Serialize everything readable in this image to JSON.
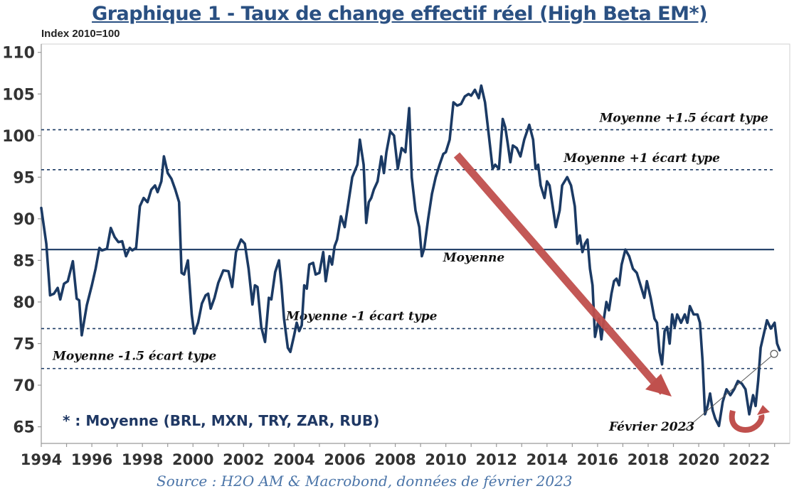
{
  "chart_data": {
    "type": "line",
    "title": "Graphique 1 - Taux de change effectif réel (High Beta EM*)",
    "ylabel": "Index 2010=100",
    "ylim": [
      63,
      111
    ],
    "xlim": [
      1994,
      2023.6
    ],
    "yticks": [
      110,
      105,
      100,
      95,
      90,
      85,
      80,
      75,
      70,
      65
    ],
    "xticks": [
      1994,
      1996,
      1998,
      2000,
      2002,
      2004,
      2006,
      2008,
      2010,
      2012,
      2014,
      2016,
      2018,
      2020,
      2022
    ],
    "grid": false,
    "series": [
      {
        "color": "#1b3a64",
        "points": [
          [
            1994.0,
            91.3
          ],
          [
            1994.2,
            87.0
          ],
          [
            1994.35,
            80.8
          ],
          [
            1994.5,
            81.0
          ],
          [
            1994.65,
            81.7
          ],
          [
            1994.75,
            80.3
          ],
          [
            1994.9,
            82.2
          ],
          [
            1995.05,
            82.5
          ],
          [
            1995.25,
            84.9
          ],
          [
            1995.4,
            80.4
          ],
          [
            1995.5,
            80.2
          ],
          [
            1995.6,
            76.0
          ],
          [
            1995.8,
            79.6
          ],
          [
            1996.0,
            82.0
          ],
          [
            1996.15,
            84.0
          ],
          [
            1996.3,
            86.5
          ],
          [
            1996.4,
            86.2
          ],
          [
            1996.6,
            86.4
          ],
          [
            1996.75,
            88.9
          ],
          [
            1996.9,
            87.8
          ],
          [
            1997.05,
            87.2
          ],
          [
            1997.2,
            87.3
          ],
          [
            1997.35,
            85.5
          ],
          [
            1997.5,
            86.5
          ],
          [
            1997.6,
            86.2
          ],
          [
            1997.75,
            86.5
          ],
          [
            1997.9,
            91.5
          ],
          [
            1998.05,
            92.5
          ],
          [
            1998.2,
            92.0
          ],
          [
            1998.35,
            93.5
          ],
          [
            1998.5,
            94.0
          ],
          [
            1998.6,
            93.2
          ],
          [
            1998.75,
            94.5
          ],
          [
            1998.85,
            97.5
          ],
          [
            1999.0,
            95.5
          ],
          [
            1999.15,
            94.8
          ],
          [
            1999.3,
            93.5
          ],
          [
            1999.45,
            92.0
          ],
          [
            1999.55,
            83.5
          ],
          [
            1999.65,
            83.3
          ],
          [
            1999.8,
            85.0
          ],
          [
            1999.95,
            78.5
          ],
          [
            2000.05,
            76.2
          ],
          [
            2000.2,
            77.5
          ],
          [
            2000.35,
            79.8
          ],
          [
            2000.5,
            80.8
          ],
          [
            2000.6,
            81.0
          ],
          [
            2000.7,
            79.2
          ],
          [
            2000.85,
            80.5
          ],
          [
            2001.0,
            82.3
          ],
          [
            2001.2,
            83.8
          ],
          [
            2001.4,
            83.7
          ],
          [
            2001.55,
            81.8
          ],
          [
            2001.7,
            86.0
          ],
          [
            2001.9,
            87.5
          ],
          [
            2002.05,
            87.0
          ],
          [
            2002.2,
            84.0
          ],
          [
            2002.35,
            79.7
          ],
          [
            2002.45,
            82.0
          ],
          [
            2002.55,
            81.8
          ],
          [
            2002.7,
            77.0
          ],
          [
            2002.85,
            75.2
          ],
          [
            2003.0,
            80.5
          ],
          [
            2003.1,
            80.3
          ],
          [
            2003.25,
            83.6
          ],
          [
            2003.4,
            85.0
          ],
          [
            2003.5,
            82.0
          ],
          [
            2003.6,
            78.0
          ],
          [
            2003.75,
            74.5
          ],
          [
            2003.85,
            74.0
          ],
          [
            2004.0,
            76.0
          ],
          [
            2004.1,
            77.5
          ],
          [
            2004.2,
            76.5
          ],
          [
            2004.3,
            77.2
          ],
          [
            2004.4,
            82.0
          ],
          [
            2004.5,
            81.6
          ],
          [
            2004.6,
            84.5
          ],
          [
            2004.75,
            84.7
          ],
          [
            2004.85,
            83.3
          ],
          [
            2005.0,
            83.5
          ],
          [
            2005.15,
            86.0
          ],
          [
            2005.25,
            82.5
          ],
          [
            2005.4,
            85.5
          ],
          [
            2005.5,
            84.5
          ],
          [
            2005.6,
            86.7
          ],
          [
            2005.7,
            87.5
          ],
          [
            2005.85,
            90.3
          ],
          [
            2006.0,
            89.0
          ],
          [
            2006.15,
            92.0
          ],
          [
            2006.3,
            95.0
          ],
          [
            2006.5,
            96.5
          ],
          [
            2006.6,
            99.5
          ],
          [
            2006.75,
            96.5
          ],
          [
            2006.85,
            89.5
          ],
          [
            2006.95,
            92.0
          ],
          [
            2007.05,
            92.5
          ],
          [
            2007.15,
            93.5
          ],
          [
            2007.3,
            94.5
          ],
          [
            2007.45,
            97.5
          ],
          [
            2007.55,
            95.5
          ],
          [
            2007.65,
            98.0
          ],
          [
            2007.8,
            100.5
          ],
          [
            2007.95,
            100.0
          ],
          [
            2008.1,
            96.0
          ],
          [
            2008.25,
            98.5
          ],
          [
            2008.4,
            98.0
          ],
          [
            2008.55,
            103.3
          ],
          [
            2008.65,
            95.0
          ],
          [
            2008.8,
            91.0
          ],
          [
            2008.95,
            89.0
          ],
          [
            2009.05,
            85.5
          ],
          [
            2009.15,
            86.5
          ],
          [
            2009.3,
            90.0
          ],
          [
            2009.45,
            93.0
          ],
          [
            2009.6,
            95.0
          ],
          [
            2009.75,
            96.5
          ],
          [
            2009.9,
            97.8
          ],
          [
            2010.0,
            98.0
          ],
          [
            2010.15,
            99.5
          ],
          [
            2010.3,
            104.0
          ],
          [
            2010.45,
            103.6
          ],
          [
            2010.6,
            103.8
          ],
          [
            2010.75,
            104.7
          ],
          [
            2010.9,
            105.0
          ],
          [
            2011.0,
            104.8
          ],
          [
            2011.15,
            105.5
          ],
          [
            2011.3,
            104.5
          ],
          [
            2011.4,
            106.0
          ],
          [
            2011.55,
            104.0
          ],
          [
            2011.7,
            100.0
          ],
          [
            2011.85,
            96.0
          ],
          [
            2011.95,
            96.5
          ],
          [
            2012.1,
            96.0
          ],
          [
            2012.25,
            102.0
          ],
          [
            2012.35,
            101.0
          ],
          [
            2012.45,
            99.0
          ],
          [
            2012.55,
            96.8
          ],
          [
            2012.65,
            98.8
          ],
          [
            2012.8,
            98.5
          ],
          [
            2012.95,
            97.5
          ],
          [
            2013.1,
            99.5
          ],
          [
            2013.3,
            101.3
          ],
          [
            2013.45,
            99.5
          ],
          [
            2013.55,
            96.0
          ],
          [
            2013.65,
            96.5
          ],
          [
            2013.75,
            94.0
          ],
          [
            2013.9,
            92.5
          ],
          [
            2014.0,
            94.5
          ],
          [
            2014.1,
            94.0
          ],
          [
            2014.25,
            91.0
          ],
          [
            2014.35,
            89.0
          ],
          [
            2014.5,
            91.0
          ],
          [
            2014.6,
            94.0
          ],
          [
            2014.8,
            95.0
          ],
          [
            2014.95,
            94.0
          ],
          [
            2015.1,
            91.5
          ],
          [
            2015.2,
            87.0
          ],
          [
            2015.3,
            88.0
          ],
          [
            2015.4,
            86.0
          ],
          [
            2015.5,
            87.0
          ],
          [
            2015.6,
            87.5
          ],
          [
            2015.7,
            84.0
          ],
          [
            2015.8,
            82.0
          ],
          [
            2015.9,
            75.8
          ],
          [
            2016.05,
            78.0
          ],
          [
            2016.15,
            75.5
          ],
          [
            2016.25,
            78.0
          ],
          [
            2016.35,
            80.0
          ],
          [
            2016.45,
            79.0
          ],
          [
            2016.55,
            81.0
          ],
          [
            2016.65,
            82.5
          ],
          [
            2016.75,
            82.8
          ],
          [
            2016.85,
            82.0
          ],
          [
            2016.95,
            84.5
          ],
          [
            2017.1,
            86.3
          ],
          [
            2017.25,
            85.5
          ],
          [
            2017.4,
            84.0
          ],
          [
            2017.55,
            83.5
          ],
          [
            2017.7,
            82.0
          ],
          [
            2017.85,
            80.5
          ],
          [
            2017.95,
            82.5
          ],
          [
            2018.1,
            80.5
          ],
          [
            2018.25,
            78.0
          ],
          [
            2018.35,
            77.5
          ],
          [
            2018.45,
            74.0
          ],
          [
            2018.55,
            72.5
          ],
          [
            2018.65,
            76.5
          ],
          [
            2018.75,
            77.0
          ],
          [
            2018.85,
            75.0
          ],
          [
            2018.95,
            78.5
          ],
          [
            2019.05,
            77.0
          ],
          [
            2019.15,
            78.5
          ],
          [
            2019.3,
            77.5
          ],
          [
            2019.45,
            78.5
          ],
          [
            2019.55,
            77.5
          ],
          [
            2019.65,
            79.5
          ],
          [
            2019.8,
            78.5
          ],
          [
            2019.95,
            78.5
          ],
          [
            2020.05,
            77.5
          ],
          [
            2020.15,
            73.0
          ],
          [
            2020.25,
            66.5
          ],
          [
            2020.35,
            67.5
          ],
          [
            2020.45,
            69.0
          ],
          [
            2020.55,
            67.0
          ],
          [
            2020.65,
            66.0
          ],
          [
            2020.8,
            65.1
          ],
          [
            2020.95,
            68.0
          ],
          [
            2021.1,
            69.5
          ],
          [
            2021.25,
            68.8
          ],
          [
            2021.4,
            69.5
          ],
          [
            2021.55,
            70.5
          ],
          [
            2021.7,
            70.2
          ],
          [
            2021.85,
            69.5
          ],
          [
            2022.0,
            66.5
          ],
          [
            2022.15,
            68.8
          ],
          [
            2022.25,
            67.5
          ],
          [
            2022.35,
            70.5
          ],
          [
            2022.45,
            74.5
          ],
          [
            2022.6,
            76.5
          ],
          [
            2022.7,
            77.8
          ],
          [
            2022.85,
            76.8
          ],
          [
            2023.0,
            77.5
          ],
          [
            2023.1,
            75.0
          ],
          [
            2023.2,
            74.2
          ]
        ]
      }
    ],
    "reference_lines": [
      {
        "y": 100.7,
        "style": "dashed",
        "label": "Moyenne +1.5 écart type"
      },
      {
        "y": 95.9,
        "style": "dashed",
        "label": "Moyenne +1 écart type"
      },
      {
        "y": 86.3,
        "style": "solid",
        "label": "Moyenne"
      },
      {
        "y": 76.8,
        "style": "dashed",
        "label": "Moyenne -1 écart type"
      },
      {
        "y": 72.0,
        "style": "dashed",
        "label": "Moyenne -1.5 écart type"
      }
    ],
    "annotations": {
      "latest_point_label": "Février 2023",
      "footnote": "* : Moyenne (BRL, MXN, TRY, ZAR, RUB)",
      "source": "Source : H2O AM & Macrobond, données de février 2023"
    },
    "colors": {
      "series": "#1b3a64",
      "trend_arrow": "#c0504d",
      "title": "#2a5082",
      "source": "#4a74a8"
    }
  }
}
